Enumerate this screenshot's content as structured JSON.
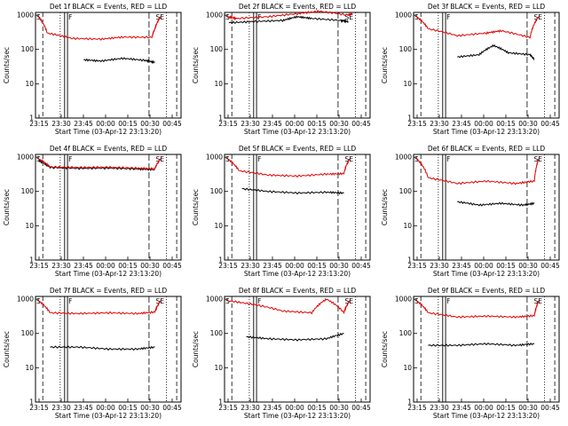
{
  "chart_data": [
    {
      "type": "line",
      "title": "Det 1f BLACK = Events, RED = LLD",
      "xlabel": "Start Time (03-Apr-12 23:13:20)",
      "ylabel": "Counts/sec",
      "x_ticks": [
        "23:15",
        "23:30",
        "23:45",
        "00:00",
        "00:15",
        "00:30",
        "00:45"
      ],
      "y_ticks": [
        "1",
        "10",
        "100",
        "1000"
      ],
      "ylog": true,
      "markers": [
        "S",
        "F",
        "SE"
      ],
      "series": [
        {
          "color": "#000000",
          "points": [
            [
              0.33,
              50
            ],
            [
              0.45,
              46
            ],
            [
              0.6,
              55
            ],
            [
              0.75,
              48
            ],
            [
              0.82,
              42
            ]
          ]
        },
        {
          "color": "#e00000",
          "points": [
            [
              0.02,
              900
            ],
            [
              0.08,
              300
            ],
            [
              0.25,
              210
            ],
            [
              0.45,
              200
            ],
            [
              0.6,
              230
            ],
            [
              0.8,
              225
            ],
            [
              0.82,
              400
            ],
            [
              0.86,
              900
            ]
          ]
        }
      ]
    },
    {
      "type": "line",
      "title": "Det 2f BLACK = Events, RED = LLD",
      "xlabel": "Start Time (03-Apr-12 23:13:20)",
      "ylabel": "Counts/sec",
      "x_ticks": [
        "23:15",
        "23:30",
        "23:45",
        "00:00",
        "00:15",
        "00:30",
        "00:45"
      ],
      "y_ticks": [
        "1",
        "10",
        "100",
        "1000"
      ],
      "ylog": true,
      "markers": [
        "S",
        "F",
        "SE"
      ],
      "series": [
        {
          "color": "#000000",
          "points": [
            [
              0.03,
              600
            ],
            [
              0.2,
              650
            ],
            [
              0.4,
              700
            ],
            [
              0.5,
              900
            ],
            [
              0.6,
              800
            ],
            [
              0.8,
              700
            ],
            [
              0.85,
              650
            ]
          ]
        },
        {
          "color": "#e00000",
          "points": [
            [
              0.02,
              900
            ],
            [
              0.08,
              800
            ],
            [
              0.3,
              900
            ],
            [
              0.5,
              1100
            ],
            [
              0.65,
              1300
            ],
            [
              0.85,
              1000
            ],
            [
              0.88,
              1100
            ]
          ]
        }
      ]
    },
    {
      "type": "line",
      "title": "Det 3f BLACK = Events, RED = LLD",
      "xlabel": "Start Time (03-Apr-12 23:13:20)",
      "ylabel": "Counts/sec",
      "x_ticks": [
        "23:15",
        "23:30",
        "23:45",
        "00:00",
        "00:15",
        "00:30",
        "00:45"
      ],
      "y_ticks": [
        "1",
        "10",
        "100",
        "1000"
      ],
      "ylog": true,
      "markers": [
        "S",
        "F",
        "SE"
      ],
      "series": [
        {
          "color": "#000000",
          "points": [
            [
              0.3,
              60
            ],
            [
              0.45,
              70
            ],
            [
              0.55,
              130
            ],
            [
              0.65,
              80
            ],
            [
              0.8,
              70
            ],
            [
              0.83,
              50
            ]
          ]
        },
        {
          "color": "#e00000",
          "points": [
            [
              0.02,
              900
            ],
            [
              0.1,
              400
            ],
            [
              0.3,
              250
            ],
            [
              0.5,
              300
            ],
            [
              0.6,
              350
            ],
            [
              0.8,
              220
            ],
            [
              0.86,
              900
            ]
          ]
        }
      ]
    },
    {
      "type": "line",
      "title": "Det 4f BLACK = Events, RED = LLD",
      "xlabel": "Start Time (03-Apr-12 23:13:20)",
      "ylabel": "Counts/sec",
      "x_ticks": [
        "23:15",
        "23:30",
        "23:45",
        "00:00",
        "00:15",
        "00:30",
        "00:45"
      ],
      "y_ticks": [
        "1",
        "10",
        "100",
        "1000"
      ],
      "ylog": true,
      "markers": [
        "S",
        "F",
        "SE"
      ],
      "series": [
        {
          "color": "#000000",
          "points": [
            [
              0.02,
              800
            ],
            [
              0.1,
              500
            ],
            [
              0.3,
              470
            ],
            [
              0.5,
              480
            ],
            [
              0.7,
              450
            ],
            [
              0.82,
              430
            ]
          ]
        },
        {
          "color": "#e00000",
          "points": [
            [
              0.02,
              900
            ],
            [
              0.1,
              520
            ],
            [
              0.3,
              500
            ],
            [
              0.5,
              510
            ],
            [
              0.7,
              480
            ],
            [
              0.82,
              460
            ],
            [
              0.86,
              900
            ]
          ]
        }
      ]
    },
    {
      "type": "line",
      "title": "Det 5f BLACK = Events, RED = LLD",
      "xlabel": "Start Time (03-Apr-12 23:13:20)",
      "ylabel": "Counts/sec",
      "x_ticks": [
        "23:15",
        "23:30",
        "23:45",
        "00:00",
        "00:15",
        "00:30",
        "00:45"
      ],
      "y_ticks": [
        "1",
        "10",
        "100",
        "1000"
      ],
      "ylog": true,
      "markers": [
        "S",
        "F",
        "SE"
      ],
      "series": [
        {
          "color": "#000000",
          "points": [
            [
              0.12,
              120
            ],
            [
              0.3,
              100
            ],
            [
              0.5,
              90
            ],
            [
              0.7,
              95
            ],
            [
              0.82,
              90
            ]
          ]
        },
        {
          "color": "#e00000",
          "points": [
            [
              0.02,
              900
            ],
            [
              0.1,
              400
            ],
            [
              0.3,
              300
            ],
            [
              0.5,
              280
            ],
            [
              0.7,
              320
            ],
            [
              0.82,
              330
            ],
            [
              0.86,
              900
            ]
          ]
        }
      ]
    },
    {
      "type": "line",
      "title": "Det 6f BLACK = Events, RED = LLD",
      "xlabel": "Start Time (03-Apr-12 23:13:20)",
      "ylabel": "Counts/sec",
      "x_ticks": [
        "23:15",
        "23:30",
        "23:45",
        "00:00",
        "00:15",
        "00:30",
        "00:45"
      ],
      "y_ticks": [
        "1",
        "10",
        "100",
        "1000"
      ],
      "ylog": true,
      "markers": [
        "S",
        "F",
        "SE"
      ],
      "series": [
        {
          "color": "#000000",
          "points": [
            [
              0.3,
              50
            ],
            [
              0.45,
              40
            ],
            [
              0.6,
              45
            ],
            [
              0.75,
              40
            ],
            [
              0.83,
              45
            ]
          ]
        },
        {
          "color": "#e00000",
          "points": [
            [
              0.02,
              900
            ],
            [
              0.1,
              250
            ],
            [
              0.3,
              170
            ],
            [
              0.5,
              200
            ],
            [
              0.7,
              170
            ],
            [
              0.83,
              200
            ],
            [
              0.86,
              900
            ]
          ]
        }
      ]
    },
    {
      "type": "line",
      "title": "Det 7f BLACK = Events, RED = LLD",
      "xlabel": "Start Time (03-Apr-12 23:13:20)",
      "ylabel": "Counts/sec",
      "x_ticks": [
        "23:15",
        "23:30",
        "23:45",
        "00:00",
        "00:15",
        "00:30",
        "00:45"
      ],
      "y_ticks": [
        "1",
        "10",
        "100",
        "1000"
      ],
      "ylog": true,
      "markers": [
        "S",
        "F",
        "SE"
      ],
      "series": [
        {
          "color": "#000000",
          "points": [
            [
              0.1,
              40
            ],
            [
              0.3,
              40
            ],
            [
              0.5,
              35
            ],
            [
              0.7,
              35
            ],
            [
              0.82,
              40
            ]
          ]
        },
        {
          "color": "#e00000",
          "points": [
            [
              0.02,
              900
            ],
            [
              0.1,
              400
            ],
            [
              0.3,
              380
            ],
            [
              0.5,
              400
            ],
            [
              0.7,
              380
            ],
            [
              0.82,
              420
            ],
            [
              0.86,
              900
            ]
          ]
        }
      ]
    },
    {
      "type": "line",
      "title": "Det 8f BLACK = Events, RED = LLD",
      "xlabel": "Start Time (03-Apr-12 23:13:20)",
      "ylabel": "Counts/sec",
      "x_ticks": [
        "23:15",
        "23:30",
        "23:45",
        "00:00",
        "00:15",
        "00:30",
        "00:45"
      ],
      "y_ticks": [
        "1",
        "10",
        "100",
        "1000"
      ],
      "ylog": true,
      "markers": [
        "S",
        "F",
        "SE"
      ],
      "series": [
        {
          "color": "#000000",
          "points": [
            [
              0.15,
              80
            ],
            [
              0.3,
              70
            ],
            [
              0.5,
              65
            ],
            [
              0.7,
              70
            ],
            [
              0.82,
              100
            ]
          ]
        },
        {
          "color": "#e00000",
          "points": [
            [
              0.02,
              900
            ],
            [
              0.2,
              700
            ],
            [
              0.4,
              450
            ],
            [
              0.6,
              400
            ],
            [
              0.7,
              1000
            ],
            [
              0.82,
              400
            ],
            [
              0.86,
              900
            ]
          ]
        }
      ]
    },
    {
      "type": "line",
      "title": "Det 9f BLACK = Events, RED = LLD",
      "xlabel": "Start Time (03-Apr-12 23:13:20)",
      "ylabel": "Counts/sec",
      "x_ticks": [
        "23:15",
        "23:30",
        "23:45",
        "00:00",
        "00:15",
        "00:30",
        "00:45"
      ],
      "y_ticks": [
        "1",
        "10",
        "100",
        "1000"
      ],
      "ylog": true,
      "markers": [
        "S",
        "F",
        "SE"
      ],
      "series": [
        {
          "color": "#000000",
          "points": [
            [
              0.1,
              45
            ],
            [
              0.3,
              45
            ],
            [
              0.5,
              50
            ],
            [
              0.7,
              45
            ],
            [
              0.83,
              50
            ]
          ]
        },
        {
          "color": "#e00000",
          "points": [
            [
              0.02,
              900
            ],
            [
              0.1,
              400
            ],
            [
              0.3,
              300
            ],
            [
              0.5,
              320
            ],
            [
              0.7,
              300
            ],
            [
              0.83,
              330
            ],
            [
              0.86,
              900
            ]
          ]
        }
      ]
    }
  ]
}
